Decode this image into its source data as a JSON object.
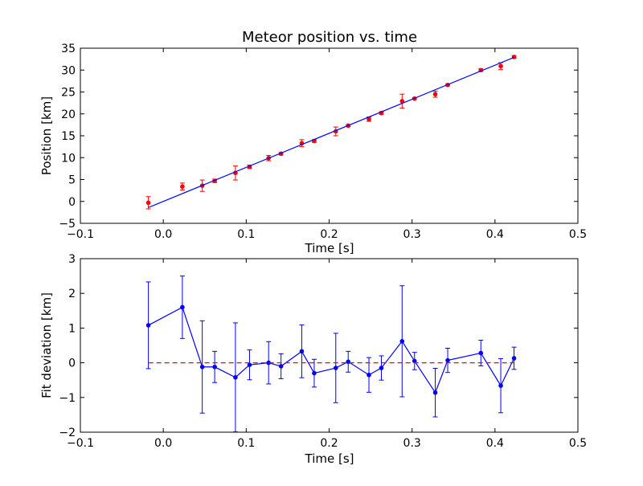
{
  "colors": {
    "background": "#ffffff",
    "data_points": "#ff0000",
    "fit_line": "#0000ff",
    "residual_line": "#0000ff",
    "zero_line": "#ff0000",
    "axes": "#000000"
  },
  "chart_data": [
    {
      "type": "scatter",
      "title": "Meteor position vs. time",
      "xlabel": "Time [s]",
      "ylabel": "Position [km]",
      "xlim": [
        -0.1,
        0.5
      ],
      "ylim": [
        -5,
        35
      ],
      "xticks": [
        -0.1,
        0.0,
        0.1,
        0.2,
        0.3,
        0.4,
        0.5
      ],
      "xtick_labels": [
        "−0.1",
        "0.0",
        "0.1",
        "0.2",
        "0.3",
        "0.4",
        "0.5"
      ],
      "yticks": [
        -5,
        0,
        5,
        10,
        15,
        20,
        25,
        30,
        35
      ],
      "ytick_labels": [
        "−5",
        "0",
        "5",
        "10",
        "15",
        "20",
        "25",
        "30",
        "35"
      ],
      "grid": false,
      "series": [
        {
          "kind": "errorbar-points",
          "color": "#ff0000",
          "x": [
            -0.018,
            0.023,
            0.047,
            0.062,
            0.087,
            0.104,
            0.127,
            0.142,
            0.167,
            0.182,
            0.208,
            0.223,
            0.248,
            0.263,
            0.288,
            0.303,
            0.328,
            0.343,
            0.383,
            0.407,
            0.423
          ],
          "y": [
            -0.3,
            3.4,
            3.6,
            4.7,
            6.5,
            7.9,
            9.9,
            10.9,
            13.3,
            13.8,
            16.0,
            17.3,
            18.8,
            20.2,
            22.9,
            23.5,
            24.5,
            26.6,
            30.0,
            30.9,
            33.0
          ],
          "yerr": [
            1.4,
            0.8,
            1.3,
            0.4,
            1.6,
            0.4,
            0.6,
            0.3,
            0.8,
            0.3,
            1.0,
            0.2,
            0.5,
            0.3,
            1.6,
            0.2,
            0.7,
            0.2,
            0.3,
            0.8,
            0.3
          ]
        },
        {
          "kind": "fit-line",
          "color": "#0000ff",
          "x": [
            -0.018,
            0.423
          ],
          "y": [
            -1.4,
            32.9
          ]
        }
      ]
    },
    {
      "type": "line",
      "title": "",
      "xlabel": "Time [s]",
      "ylabel": "Fit deviation [km]",
      "xlim": [
        -0.1,
        0.5
      ],
      "ylim": [
        -2,
        3
      ],
      "xticks": [
        -0.1,
        0.0,
        0.1,
        0.2,
        0.3,
        0.4,
        0.5
      ],
      "xtick_labels": [
        "−0.1",
        "0.0",
        "0.1",
        "0.2",
        "0.3",
        "0.4",
        "0.5"
      ],
      "yticks": [
        -2,
        -1,
        0,
        1,
        2,
        3
      ],
      "ytick_labels": [
        "−2",
        "−1",
        "0",
        "1",
        "2",
        "3"
      ],
      "grid": false,
      "series": [
        {
          "kind": "errorbar-line",
          "color": "#0000ff",
          "x": [
            -0.018,
            0.023,
            0.047,
            0.062,
            0.087,
            0.104,
            0.127,
            0.142,
            0.167,
            0.182,
            0.208,
            0.223,
            0.248,
            0.263,
            0.288,
            0.303,
            0.328,
            0.343,
            0.383,
            0.407,
            0.423
          ],
          "y": [
            1.08,
            1.6,
            -0.12,
            -0.12,
            -0.42,
            -0.06,
            0.0,
            -0.1,
            0.33,
            -0.3,
            -0.15,
            0.03,
            -0.35,
            -0.15,
            0.62,
            0.05,
            -0.86,
            0.07,
            0.28,
            -0.66,
            0.13
          ],
          "yerr": [
            1.25,
            0.9,
            1.33,
            0.45,
            1.57,
            0.43,
            0.61,
            0.36,
            0.76,
            0.4,
            1.0,
            0.3,
            0.5,
            0.35,
            1.6,
            0.25,
            0.7,
            0.35,
            0.37,
            0.78,
            0.32
          ]
        },
        {
          "kind": "zero-line",
          "color": "#ff0000",
          "x": [
            -0.018,
            0.423
          ],
          "y": [
            0,
            0
          ]
        }
      ]
    }
  ]
}
